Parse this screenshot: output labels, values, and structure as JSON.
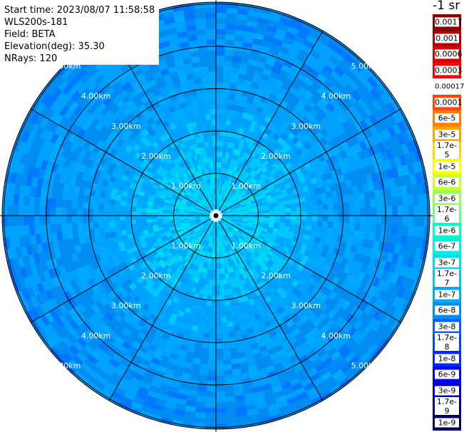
{
  "info": {
    "start_time": "Start time: 2023/08/07 11:58:58",
    "instrument": "WLS200s-181",
    "field": "Field: BETA",
    "elevation": "Elevation(deg): 35.30",
    "nrays": "NRays: 120"
  },
  "colorbar": {
    "units": "-1 sr",
    "entries": [
      {
        "label": "0.0017",
        "color": "#8b0000"
      },
      {
        "label": "0.001",
        "color": "#b40000"
      },
      {
        "label": "0.0006",
        "color": "#dd0000"
      },
      {
        "label": "0.0003",
        "color": "#ff0000"
      },
      {
        "label": "0.00017",
        "color": "#ffffff"
      },
      {
        "label": "0.0001",
        "color": "#ff4500"
      },
      {
        "label": "6e-5",
        "color": "#ff7f00"
      },
      {
        "label": "3e-5",
        "color": "#ffa500"
      },
      {
        "label": "1.7e-5",
        "color": "#ffd700"
      },
      {
        "label": "1e-5",
        "color": "#ffff00"
      },
      {
        "label": "6e-6",
        "color": "#c8ff32"
      },
      {
        "label": "3e-6",
        "color": "#96ff50"
      },
      {
        "label": "1.7e-6",
        "color": "#64ff96"
      },
      {
        "label": "1e-6",
        "color": "#00ffc8"
      },
      {
        "label": "6e-7",
        "color": "#00f0e6"
      },
      {
        "label": "3e-7",
        "color": "#00dcf0"
      },
      {
        "label": "1.7e-7",
        "color": "#00c8ff"
      },
      {
        "label": "1e-7",
        "color": "#00aaff"
      },
      {
        "label": "6e-8",
        "color": "#008cf0"
      },
      {
        "label": "3e-8",
        "color": "#0064ff"
      },
      {
        "label": "1.7e-8",
        "color": "#0046ff"
      },
      {
        "label": "1e-8",
        "color": "#0028ff"
      },
      {
        "label": "6e-9",
        "color": "#0000ff"
      },
      {
        "label": "3e-9",
        "color": "#0000c8"
      },
      {
        "label": "1.7e-9",
        "color": "#000096"
      },
      {
        "label": "1e-9",
        "color": "#000064"
      }
    ]
  },
  "rings": [
    {
      "km": 1,
      "label": "1.00km"
    },
    {
      "km": 2,
      "label": "2.00km"
    },
    {
      "km": 3,
      "label": "3.00km"
    },
    {
      "km": 4,
      "label": "4.00km"
    },
    {
      "km": 5,
      "label": "5.00km"
    }
  ],
  "ppi": {
    "gate_colors": [
      "#0064ff",
      "#0078ff",
      "#008cf0",
      "#00a0ff",
      "#00aaff",
      "#00c8ff",
      "#00dcf0",
      "#00f0e6"
    ],
    "ring_color": "#000000",
    "spoke_count": 12
  }
}
